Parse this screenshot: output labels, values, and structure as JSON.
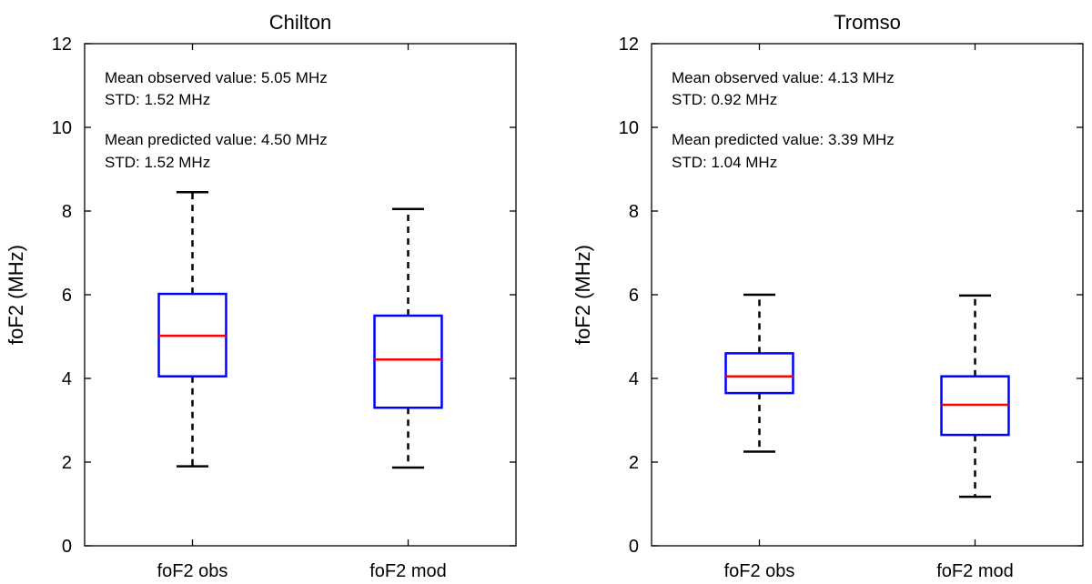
{
  "chart_data": [
    {
      "type": "box",
      "title": "Chilton",
      "ylabel": "foF2 (MHz)",
      "xlabel": "",
      "ylim": [
        0,
        12
      ],
      "yticks": [
        0,
        2,
        4,
        6,
        8,
        10,
        12
      ],
      "categories": [
        "foF2 obs",
        "foF2 mod"
      ],
      "boxes": [
        {
          "name": "foF2 obs",
          "whisker_low": 1.9,
          "q1": 4.05,
          "median": 5.02,
          "q3": 6.02,
          "whisker_high": 8.45
        },
        {
          "name": "foF2 mod",
          "whisker_low": 1.87,
          "q1": 3.3,
          "median": 4.45,
          "q3": 5.5,
          "whisker_high": 8.05
        }
      ],
      "annotations": [
        "Mean observed value: 5.05 MHz",
        "STD: 1.52 MHz",
        "Mean predicted value: 4.50 MHz",
        "STD: 1.52 MHz"
      ]
    },
    {
      "type": "box",
      "title": "Tromso",
      "ylabel": "foF2 (MHz)",
      "xlabel": "",
      "ylim": [
        0,
        12
      ],
      "yticks": [
        0,
        2,
        4,
        6,
        8,
        10,
        12
      ],
      "categories": [
        "foF2 obs",
        "foF2 mod"
      ],
      "boxes": [
        {
          "name": "foF2 obs",
          "whisker_low": 2.25,
          "q1": 3.65,
          "median": 4.05,
          "q3": 4.6,
          "whisker_high": 6.0
        },
        {
          "name": "foF2 mod",
          "whisker_low": 1.17,
          "q1": 2.65,
          "median": 3.37,
          "q3": 4.05,
          "whisker_high": 5.98
        }
      ],
      "annotations": [
        "Mean observed value: 4.13 MHz",
        "STD: 0.92 MHz",
        "Mean predicted value: 3.39 MHz",
        "STD: 1.04 MHz"
      ]
    }
  ],
  "colors": {
    "box": "#0000ff",
    "median": "#ff0000",
    "whisker": "#000000",
    "axes": "#000000"
  }
}
